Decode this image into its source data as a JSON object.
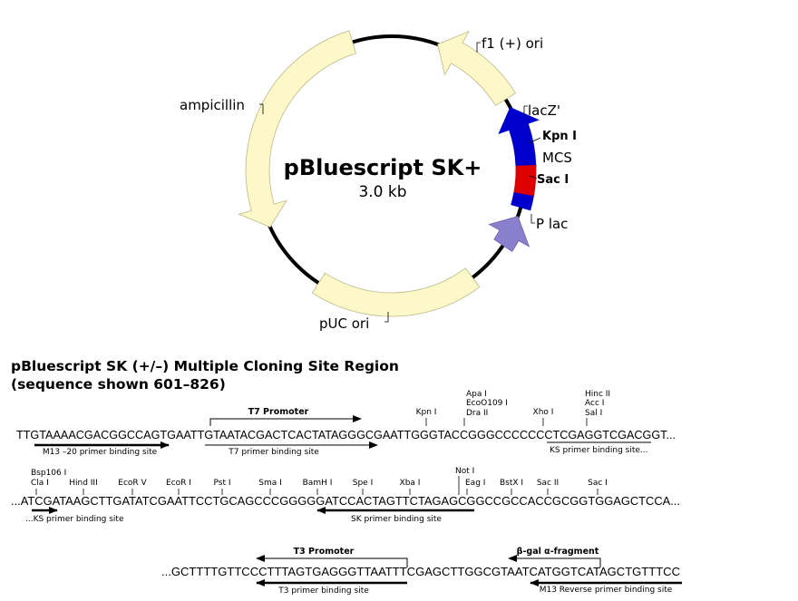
{
  "plasmid": {
    "name": "pBluescript SK+",
    "size": "3.0 kb",
    "features": {
      "f1_ori": "f1 (+) ori",
      "lacZ": "lacZ'",
      "kpn": "Kpn I",
      "mcs": "MCS",
      "sac": "Sac I",
      "plac": "P lac",
      "puc_ori": "pUC ori",
      "ampicillin": "ampicillin"
    },
    "colors": {
      "backbone": "#000000",
      "yellow_feature": "#fcf8c8",
      "lacZ": "#0000cc",
      "mcs": "#dd0000",
      "plac": "#8a7fcc"
    }
  },
  "mcs_region": {
    "title": "pBluescript SK (+/–) Multiple Cloning Site Region",
    "subtitle": "(sequence shown 601–826)",
    "line1": {
      "sequence": "TTGTAAAACGACGGCCAGTGAATTGTAATACGACTCACTATAGGGCGAATTGGGTACCGGGCCCCCCCTCGAGGTCGACGGT...",
      "promoter": "T7 Promoter",
      "primers": [
        "M13 –20 primer binding site",
        "T7 primer binding site",
        "KS primer binding site..."
      ],
      "enzymes": [
        "Kpn I",
        "Apa I",
        "EcoO109 I",
        "Dra II",
        "Xho I",
        "Hinc II",
        "Acc I",
        "Sal I"
      ]
    },
    "line2": {
      "sequence": "...ATCGATAAGCTTGATATCGAATTCCTGCAGCCCGGGGGATCCACTAGTTCTAGAGCGGCCGCCACCGCGGTGGAGCTCCA...",
      "primers": [
        "...KS primer binding site",
        "SK primer binding site"
      ],
      "enzymes": [
        "Bsp106 I",
        "Cla I",
        "Hind III",
        "EcoR V",
        "EcoR I",
        "Pst I",
        "Sma I",
        "BamH I",
        "Spe I",
        "Xba I",
        "Not I",
        "Eag I",
        "BstX I",
        "Sac II",
        "Sac I"
      ]
    },
    "line3": {
      "sequence": "...GCTTTTGTTCCCTTTAGTGAGGGTTAATTTCGAGCTTGGCGTAATCATGGTCATAGCTGTTTCC",
      "promoter": "T3 Promoter",
      "fragment": "β-gal α-fragment",
      "primers": [
        "T3 primer binding site",
        "M13 Reverse primer binding site"
      ]
    }
  }
}
